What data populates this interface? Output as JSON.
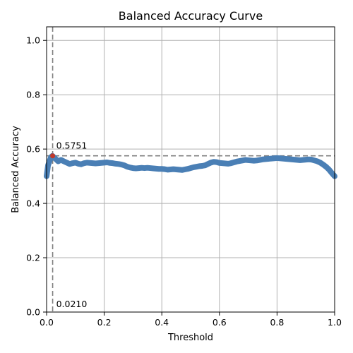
{
  "chart_data": {
    "type": "line",
    "title": "Balanced Accuracy Curve",
    "xlabel": "Threshold",
    "ylabel": "Balanced Accuracy",
    "xlim": [
      0,
      1
    ],
    "ylim": [
      0,
      1.05
    ],
    "grid": true,
    "x_ticks": [
      0.0,
      0.2,
      0.4,
      0.6,
      0.8,
      1.0
    ],
    "y_ticks": [
      0.0,
      0.2,
      0.4,
      0.6,
      0.8,
      1.0
    ],
    "x_tick_labels": [
      "0.0",
      "0.2",
      "0.4",
      "0.6",
      "0.8",
      "1.0"
    ],
    "y_tick_labels": [
      "0.0",
      "0.2",
      "0.4",
      "0.6",
      "0.8",
      "1.0"
    ],
    "series": [
      {
        "color": "#4a7fb5",
        "x": [
          0.0,
          0.005,
          0.01,
          0.015,
          0.02,
          0.03,
          0.04,
          0.05,
          0.06,
          0.07,
          0.08,
          0.09,
          0.1,
          0.11,
          0.12,
          0.13,
          0.14,
          0.15,
          0.16,
          0.17,
          0.18,
          0.19,
          0.2,
          0.21,
          0.22,
          0.23,
          0.24,
          0.25,
          0.26,
          0.27,
          0.28,
          0.29,
          0.3,
          0.31,
          0.32,
          0.33,
          0.34,
          0.35,
          0.36,
          0.37,
          0.38,
          0.39,
          0.4,
          0.41,
          0.42,
          0.43,
          0.44,
          0.45,
          0.46,
          0.47,
          0.48,
          0.49,
          0.5,
          0.51,
          0.52,
          0.53,
          0.54,
          0.55,
          0.56,
          0.57,
          0.58,
          0.59,
          0.6,
          0.61,
          0.62,
          0.63,
          0.64,
          0.65,
          0.66,
          0.67,
          0.68,
          0.69,
          0.7,
          0.71,
          0.72,
          0.73,
          0.74,
          0.75,
          0.76,
          0.77,
          0.78,
          0.79,
          0.8,
          0.81,
          0.82,
          0.83,
          0.84,
          0.85,
          0.86,
          0.87,
          0.88,
          0.89,
          0.9,
          0.91,
          0.92,
          0.93,
          0.94,
          0.95,
          0.96,
          0.97,
          0.98,
          0.99,
          1.0
        ],
        "y": [
          0.5,
          0.54,
          0.555,
          0.57,
          0.5751,
          0.565,
          0.555,
          0.56,
          0.555,
          0.55,
          0.545,
          0.548,
          0.55,
          0.546,
          0.544,
          0.548,
          0.55,
          0.549,
          0.548,
          0.547,
          0.548,
          0.549,
          0.55,
          0.551,
          0.549,
          0.548,
          0.546,
          0.545,
          0.543,
          0.54,
          0.535,
          0.532,
          0.53,
          0.529,
          0.53,
          0.531,
          0.53,
          0.531,
          0.53,
          0.529,
          0.528,
          0.527,
          0.527,
          0.526,
          0.524,
          0.525,
          0.526,
          0.525,
          0.524,
          0.523,
          0.525,
          0.527,
          0.53,
          0.533,
          0.535,
          0.537,
          0.538,
          0.54,
          0.545,
          0.55,
          0.553,
          0.552,
          0.549,
          0.548,
          0.547,
          0.546,
          0.548,
          0.551,
          0.554,
          0.556,
          0.558,
          0.56,
          0.559,
          0.558,
          0.557,
          0.558,
          0.56,
          0.562,
          0.563,
          0.564,
          0.565,
          0.566,
          0.567,
          0.566,
          0.565,
          0.564,
          0.563,
          0.562,
          0.561,
          0.56,
          0.559,
          0.56,
          0.561,
          0.562,
          0.561,
          0.558,
          0.555,
          0.55,
          0.543,
          0.535,
          0.525,
          0.512,
          0.5
        ]
      }
    ],
    "annotations": [
      {
        "text": "0.5751",
        "x": 0.021,
        "y": 0.5751,
        "marker_color": "#c0392b"
      },
      {
        "text": "0.0210",
        "x": 0.021,
        "y": 0.0
      }
    ],
    "reference_lines": {
      "vertical_x": 0.021,
      "horizontal_y": 0.5751,
      "color": "#808080",
      "style": "dashed"
    }
  }
}
